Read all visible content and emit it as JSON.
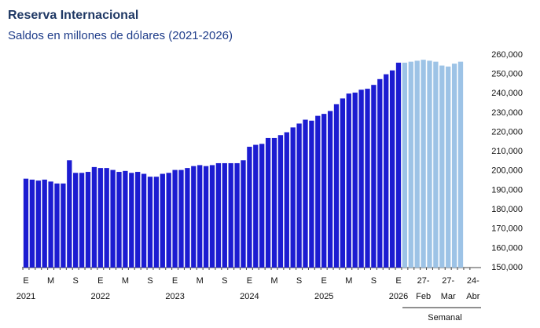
{
  "chart_data": {
    "type": "bar",
    "title": "Reserva Internacional",
    "subtitle": "Saldos en millones de dólares (2021-2026)",
    "group_label": "Semanal",
    "categories": [
      "E",
      null,
      null,
      null,
      "M",
      null,
      null,
      null,
      "S",
      null,
      null,
      null,
      "E",
      null,
      null,
      null,
      "M",
      null,
      null,
      null,
      "S",
      null,
      null,
      null,
      "E",
      null,
      null,
      null,
      "M",
      null,
      null,
      null,
      "S",
      null,
      null,
      null,
      "E",
      null,
      null,
      null,
      "M",
      null,
      null,
      null,
      "S",
      null,
      null,
      null,
      "E",
      null,
      null,
      null,
      "M",
      null,
      null,
      null,
      "S",
      null,
      null,
      null,
      "E",
      null,
      null,
      null,
      "27-",
      null,
      null,
      null,
      "27-",
      null,
      null,
      null,
      "24-"
    ],
    "sublabels": [
      "2021",
      null,
      null,
      null,
      null,
      null,
      null,
      null,
      null,
      null,
      null,
      null,
      "2022",
      null,
      null,
      null,
      null,
      null,
      null,
      null,
      null,
      null,
      null,
      null,
      "2023",
      null,
      null,
      null,
      null,
      null,
      null,
      null,
      null,
      null,
      null,
      null,
      "2024",
      null,
      null,
      null,
      null,
      null,
      null,
      null,
      null,
      null,
      null,
      null,
      "2025",
      null,
      null,
      null,
      null,
      null,
      null,
      null,
      null,
      null,
      null,
      null,
      "2026",
      null,
      null,
      null,
      "Feb",
      null,
      null,
      null,
      "Mar",
      null,
      null,
      null,
      "Abr"
    ],
    "values": [
      196000,
      195500,
      195000,
      195500,
      194500,
      193500,
      193500,
      205500,
      199000,
      199000,
      199500,
      202000,
      201500,
      201500,
      200500,
      199500,
      200000,
      199000,
      199500,
      198500,
      197000,
      197000,
      198500,
      199000,
      200500,
      200500,
      201500,
      202500,
      203000,
      202500,
      203000,
      204000,
      204000,
      204000,
      204000,
      205500,
      212500,
      213500,
      214000,
      217000,
      217000,
      218500,
      220000,
      222500,
      224500,
      226500,
      226000,
      228500,
      229500,
      231000,
      234500,
      237500,
      240000,
      240500,
      242000,
      242500,
      244500,
      247500,
      250000,
      252000,
      256000,
      256000,
      256500,
      257000,
      257500,
      257000,
      256500,
      254500,
      254000,
      255500,
      256500,
      null,
      null
    ],
    "colors": [
      "#1c1cd1",
      "#1c1cd1",
      "#1c1cd1",
      "#1c1cd1",
      "#1c1cd1",
      "#1c1cd1",
      "#1c1cd1",
      "#1c1cd1",
      "#1c1cd1",
      "#1c1cd1",
      "#1c1cd1",
      "#1c1cd1",
      "#1c1cd1",
      "#1c1cd1",
      "#1c1cd1",
      "#1c1cd1",
      "#1c1cd1",
      "#1c1cd1",
      "#1c1cd1",
      "#1c1cd1",
      "#1c1cd1",
      "#1c1cd1",
      "#1c1cd1",
      "#1c1cd1",
      "#1c1cd1",
      "#1c1cd1",
      "#1c1cd1",
      "#1c1cd1",
      "#1c1cd1",
      "#1c1cd1",
      "#1c1cd1",
      "#1c1cd1",
      "#1c1cd1",
      "#1c1cd1",
      "#1c1cd1",
      "#1c1cd1",
      "#1c1cd1",
      "#1c1cd1",
      "#1c1cd1",
      "#1c1cd1",
      "#1c1cd1",
      "#1c1cd1",
      "#1c1cd1",
      "#1c1cd1",
      "#1c1cd1",
      "#1c1cd1",
      "#1c1cd1",
      "#1c1cd1",
      "#1c1cd1",
      "#1c1cd1",
      "#1c1cd1",
      "#1c1cd1",
      "#1c1cd1",
      "#1c1cd1",
      "#1c1cd1",
      "#1c1cd1",
      "#1c1cd1",
      "#1c1cd1",
      "#1c1cd1",
      "#1c1cd1",
      "#1c1cd1",
      "#9dc3e6",
      "#9dc3e6",
      "#9dc3e6",
      "#9dc3e6",
      "#9dc3e6",
      "#9dc3e6",
      "#9dc3e6",
      "#9dc3e6",
      "#9dc3e6",
      "#9dc3e6",
      null,
      null
    ],
    "ylim": [
      150000,
      260000
    ],
    "yticks": [
      {
        "value": 150000,
        "label": "150,000"
      },
      {
        "value": 160000,
        "label": "160,000"
      },
      {
        "value": 170000,
        "label": "170,000"
      },
      {
        "value": 180000,
        "label": "180,000"
      },
      {
        "value": 190000,
        "label": "190,000"
      },
      {
        "value": 200000,
        "label": "200,000"
      },
      {
        "value": 210000,
        "label": "210,000"
      },
      {
        "value": 220000,
        "label": "220,000"
      },
      {
        "value": 230000,
        "label": "230,000"
      },
      {
        "value": 240000,
        "label": "240,000"
      },
      {
        "value": 250000,
        "label": "250,000"
      },
      {
        "value": 260000,
        "label": "260,000"
      }
    ],
    "grid": false
  }
}
